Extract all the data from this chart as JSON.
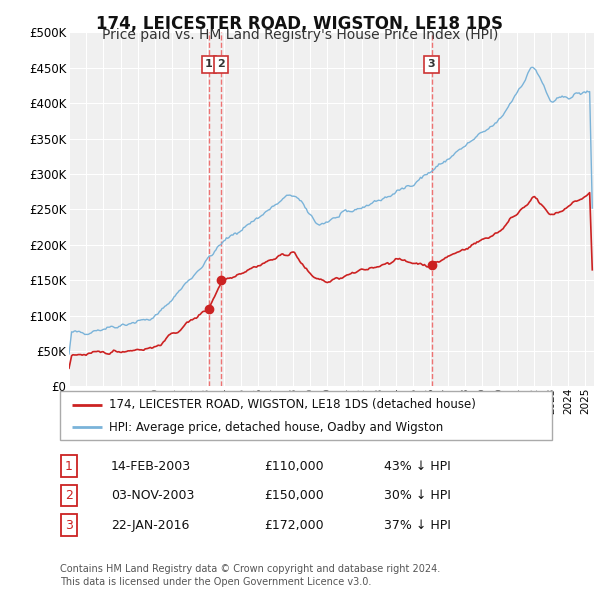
{
  "title": "174, LEICESTER ROAD, WIGSTON, LE18 1DS",
  "subtitle": "Price paid vs. HM Land Registry's House Price Index (HPI)",
  "title_fontsize": 12,
  "subtitle_fontsize": 10,
  "background_color": "#ffffff",
  "plot_bg_color": "#f0f0f0",
  "grid_color": "#ffffff",
  "hpi_color": "#7ab3d9",
  "price_color": "#cc2222",
  "dashed_color": "#ee6666",
  "ylim": [
    0,
    500000
  ],
  "yticks": [
    0,
    50000,
    100000,
    150000,
    200000,
    250000,
    300000,
    350000,
    400000,
    450000,
    500000
  ],
  "xlim": [
    1995,
    2025.5
  ],
  "transactions": [
    {
      "num": 1,
      "date": "14-FEB-2003",
      "price": 110000,
      "price_str": "£110,000",
      "pct": "43%",
      "dir": "↓",
      "year": 2003.12
    },
    {
      "num": 2,
      "date": "03-NOV-2003",
      "price": 150000,
      "price_str": "£150,000",
      "pct": "30%",
      "dir": "↓",
      "year": 2003.84
    },
    {
      "num": 3,
      "date": "22-JAN-2016",
      "price": 172000,
      "price_str": "£172,000",
      "pct": "37%",
      "dir": "↓",
      "year": 2016.06
    }
  ],
  "legend_label_red": "174, LEICESTER ROAD, WIGSTON, LE18 1DS (detached house)",
  "legend_label_blue": "HPI: Average price, detached house, Oadby and Wigston",
  "footer": "Contains HM Land Registry data © Crown copyright and database right 2024.\nThis data is licensed under the Open Government Licence v3.0."
}
